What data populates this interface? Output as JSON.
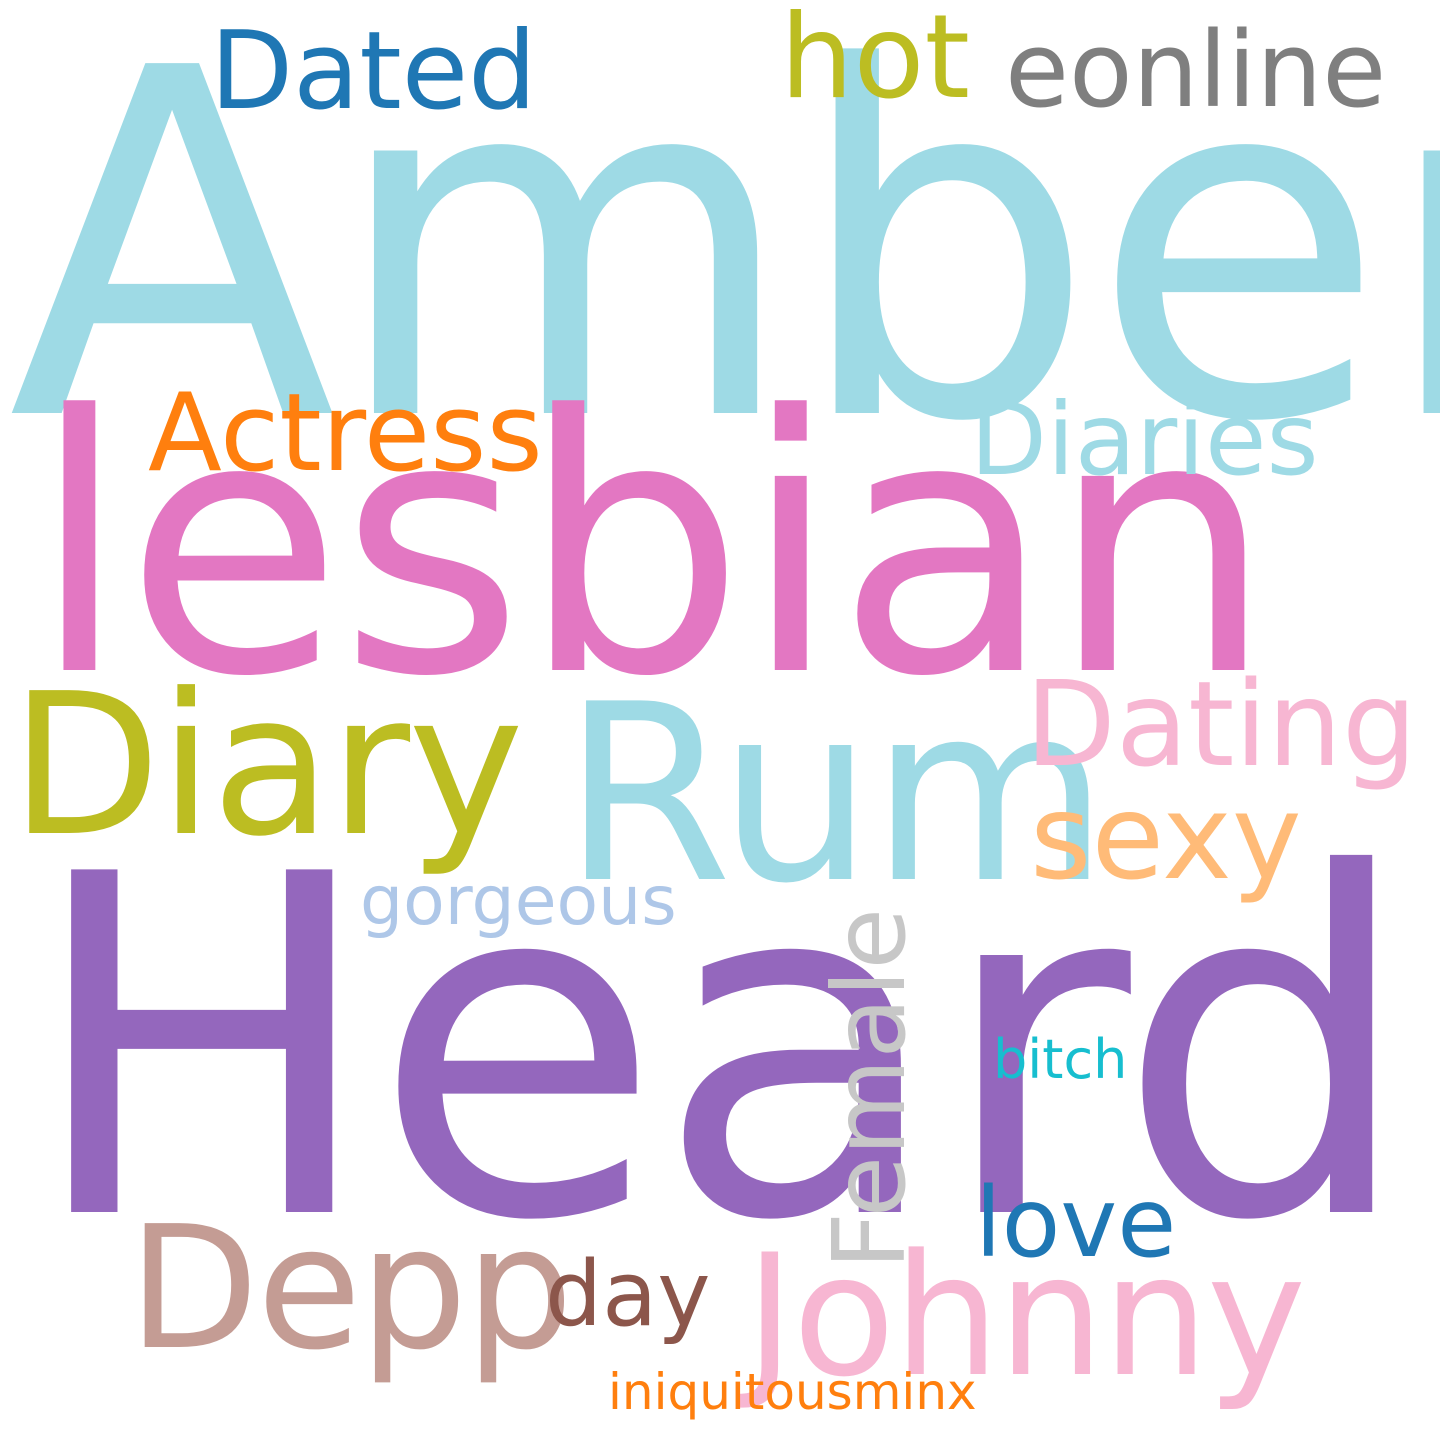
{
  "words": [
    {
      "text": "Amber",
      "color": "#9edae5"
    },
    {
      "text": "lesbian",
      "color": "#e377c2"
    },
    {
      "text": "Heard",
      "color": "#9467bd"
    },
    {
      "text": "Rum",
      "color": "#9edae5"
    },
    {
      "text": "Diary",
      "color": "#bcbd22"
    },
    {
      "text": "Johnny",
      "color": "#f7b6d2"
    },
    {
      "text": "Depp",
      "color": "#c49c94"
    },
    {
      "text": "Female",
      "color": "#c7c7c7"
    },
    {
      "text": "Dating",
      "color": "#f7b6d2"
    },
    {
      "text": "sexy",
      "color": "#ffbb78"
    },
    {
      "text": "Actress",
      "color": "#ff7f0e"
    },
    {
      "text": "Diaries",
      "color": "#9edae5"
    },
    {
      "text": "Dated",
      "color": "#1f77b4"
    },
    {
      "text": "eonline",
      "color": "#7f7f7f"
    },
    {
      "text": "hot",
      "color": "#bcbd22"
    },
    {
      "text": "love",
      "color": "#1f77b4"
    },
    {
      "text": "day",
      "color": "#8c564b"
    },
    {
      "text": "gorgeous",
      "color": "#aec7e8"
    },
    {
      "text": "bitch",
      "color": "#17becf"
    },
    {
      "text": "iniquitousminx",
      "color": "#ff7f0e"
    }
  ]
}
